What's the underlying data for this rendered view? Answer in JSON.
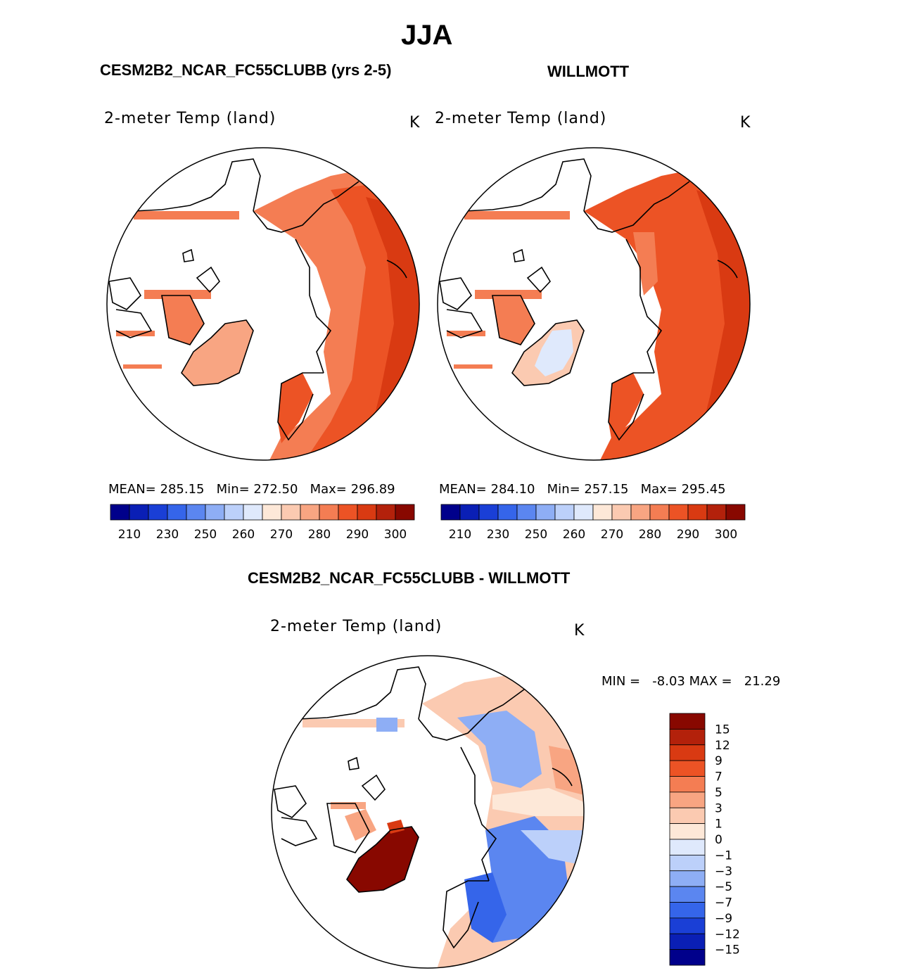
{
  "season": "JJA",
  "panels": {
    "model": {
      "case_label": "CESM2B2_NCAR_FC55CLUBB (yrs 2-5)",
      "variable": "2-meter Temp (land)",
      "units": "K",
      "stats": {
        "mean_label": "MEAN=",
        "mean": "285.15",
        "min_label": "Min=",
        "min": "272.50",
        "max_label": "Max=",
        "max": "296.89"
      }
    },
    "obs": {
      "case_label": "WILLMOTT",
      "variable": "2-meter Temp (land)",
      "units": "K",
      "stats": {
        "mean_label": "MEAN=",
        "mean": "284.10",
        "min_label": "Min=",
        "min": "257.15",
        "max_label": "Max=",
        "max": "295.45"
      }
    },
    "diff": {
      "case_label": "CESM2B2_NCAR_FC55CLUBB - WILLMOTT",
      "variable": "2-meter Temp (land)",
      "units": "K",
      "stats": {
        "min_label": "MIN =",
        "min": "-8.03",
        "max_label": "MAX =",
        "max": "21.29"
      }
    }
  },
  "colorbars": {
    "abs": {
      "colors": [
        "#00008b",
        "#0a1fb5",
        "#1a3fd6",
        "#3565ea",
        "#5b86f0",
        "#8eaef5",
        "#bcd0fa",
        "#dfe9fc",
        "#fde8d8",
        "#fbcab1",
        "#f8a582",
        "#f47d53",
        "#ec5325",
        "#d93a12",
        "#b3210b",
        "#880800"
      ],
      "ticks": [
        "210",
        "230",
        "250",
        "260",
        "270",
        "280",
        "290",
        "300"
      ]
    },
    "diff": {
      "colors": [
        "#880800",
        "#b3210b",
        "#d93a12",
        "#ec5325",
        "#f47d53",
        "#f8a582",
        "#fbcab1",
        "#fde8d8",
        "#dfe9fc",
        "#bcd0fa",
        "#8eaef5",
        "#5b86f0",
        "#3565ea",
        "#1a3fd6",
        "#0a1fb5",
        "#00008b"
      ],
      "ticks": [
        "15",
        "12",
        "9",
        "7",
        "5",
        "3",
        "1",
        "0",
        "−1",
        "−3",
        "−5",
        "−7",
        "−9",
        "−12",
        "−15"
      ]
    }
  }
}
